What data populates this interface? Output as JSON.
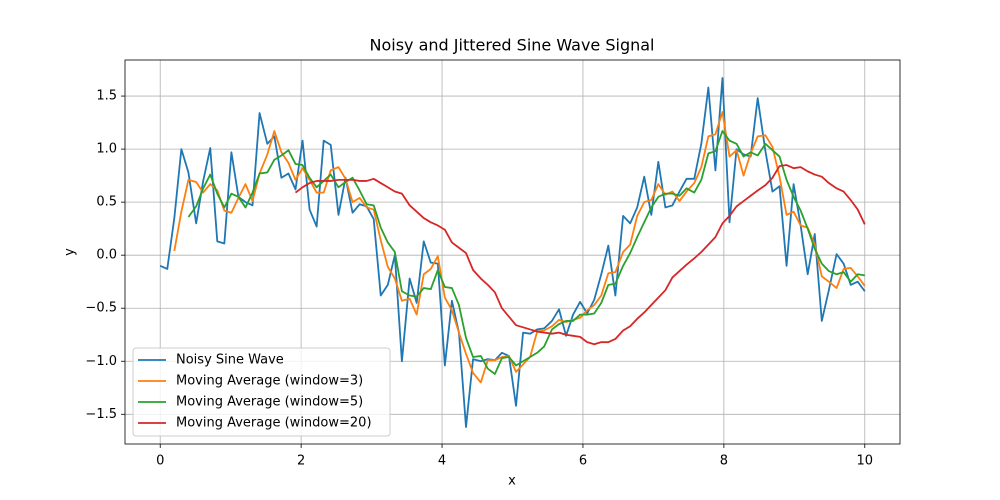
{
  "chart_data": {
    "type": "line",
    "title": "Noisy and Jittered Sine Wave Signal",
    "x_label": "x",
    "y_label": "y",
    "x": [
      0,
      0.1,
      0.2,
      0.3,
      0.4,
      0.51,
      0.61,
      0.71,
      0.81,
      0.91,
      1.01,
      1.11,
      1.21,
      1.31,
      1.41,
      1.52,
      1.62,
      1.72,
      1.82,
      1.92,
      2.02,
      2.12,
      2.22,
      2.32,
      2.42,
      2.53,
      2.63,
      2.73,
      2.83,
      2.93,
      3.03,
      3.13,
      3.23,
      3.33,
      3.43,
      3.54,
      3.64,
      3.74,
      3.84,
      3.94,
      4.04,
      4.14,
      4.24,
      4.34,
      4.44,
      4.55,
      4.65,
      4.75,
      4.85,
      4.95,
      5.05,
      5.15,
      5.25,
      5.35,
      5.45,
      5.56,
      5.66,
      5.76,
      5.86,
      5.96,
      6.06,
      6.16,
      6.26,
      6.36,
      6.46,
      6.57,
      6.67,
      6.77,
      6.87,
      6.97,
      7.07,
      7.17,
      7.27,
      7.37,
      7.47,
      7.58,
      7.68,
      7.78,
      7.88,
      7.98,
      8.08,
      8.18,
      8.28,
      8.38,
      8.48,
      8.59,
      8.69,
      8.79,
      8.89,
      8.99,
      9.09,
      9.19,
      9.29,
      9.39,
      9.49,
      9.6,
      9.7,
      9.8,
      9.9,
      10
    ],
    "series": [
      {
        "name": "Noisy Sine Wave",
        "color": "#1f77b4",
        "values": [
          -0.1,
          -0.13,
          0.35,
          1.0,
          0.78,
          0.3,
          0.7,
          1.01,
          0.13,
          0.11,
          0.97,
          0.55,
          0.5,
          0.47,
          1.34,
          1.05,
          1.12,
          0.73,
          0.77,
          0.62,
          1.08,
          0.43,
          0.27,
          1.08,
          1.04,
          0.38,
          0.73,
          0.4,
          0.48,
          0.46,
          0.34,
          -0.38,
          -0.28,
          0.0,
          -1.0,
          -0.22,
          -0.45,
          0.13,
          -0.07,
          -0.08,
          -1.04,
          -0.43,
          -0.73,
          -1.62,
          -0.98,
          -1.0,
          -0.98,
          -0.99,
          -0.92,
          -0.95,
          -1.42,
          -0.73,
          -0.74,
          -0.7,
          -0.69,
          -0.62,
          -0.51,
          -0.76,
          -0.56,
          -0.44,
          -0.55,
          -0.42,
          -0.18,
          0.09,
          -0.38,
          0.37,
          0.3,
          0.45,
          0.74,
          0.38,
          0.88,
          0.45,
          0.47,
          0.6,
          0.72,
          0.72,
          1.05,
          1.58,
          0.8,
          1.67,
          0.31,
          1.0,
          0.95,
          0.93,
          1.48,
          0.98,
          0.6,
          0.65,
          -0.1,
          0.67,
          0.28,
          -0.18,
          0.2,
          -0.62,
          -0.33,
          0.01,
          -0.08,
          -0.28,
          -0.25,
          -0.34
        ]
      },
      {
        "name": "Moving Average (window=3)",
        "color": "#ff7f0e",
        "values": [
          null,
          null,
          0.04,
          0.41,
          0.71,
          0.69,
          0.59,
          0.67,
          0.61,
          0.42,
          0.4,
          0.54,
          0.67,
          0.51,
          0.77,
          0.95,
          1.17,
          0.97,
          0.87,
          0.71,
          0.82,
          0.71,
          0.59,
          0.59,
          0.8,
          0.83,
          0.72,
          0.5,
          0.54,
          0.45,
          0.43,
          0.14,
          -0.11,
          -0.22,
          -0.43,
          -0.41,
          -0.56,
          -0.18,
          -0.13,
          -0.01,
          -0.4,
          -0.52,
          -0.73,
          -0.93,
          -1.11,
          -1.2,
          -0.99,
          -0.99,
          -0.96,
          -0.95,
          -1.1,
          -1.03,
          -0.96,
          -0.72,
          -0.71,
          -0.67,
          -0.61,
          -0.63,
          -0.61,
          -0.59,
          -0.52,
          -0.47,
          -0.38,
          -0.17,
          -0.16,
          0.03,
          0.1,
          0.37,
          0.5,
          0.52,
          0.67,
          0.57,
          0.6,
          0.51,
          0.6,
          0.68,
          0.83,
          1.12,
          1.14,
          1.35,
          0.93,
          0.99,
          0.75,
          0.96,
          1.12,
          1.13,
          1.02,
          0.74,
          0.38,
          0.41,
          0.28,
          0.26,
          0.1,
          -0.2,
          -0.25,
          -0.31,
          -0.13,
          -0.12,
          -0.2,
          -0.29
        ]
      },
      {
        "name": "Moving Average (window=5)",
        "color": "#2ca02c",
        "values": [
          null,
          null,
          null,
          null,
          0.36,
          0.46,
          0.63,
          0.76,
          0.58,
          0.45,
          0.58,
          0.55,
          0.45,
          0.59,
          0.77,
          0.78,
          0.9,
          0.94,
          0.99,
          0.86,
          0.85,
          0.73,
          0.64,
          0.7,
          0.76,
          0.64,
          0.69,
          0.73,
          0.61,
          0.48,
          0.47,
          0.26,
          0.12,
          0.03,
          -0.34,
          -0.38,
          -0.39,
          -0.31,
          -0.32,
          -0.14,
          -0.3,
          -0.31,
          -0.47,
          -0.78,
          -0.96,
          -0.95,
          -1.07,
          -1.12,
          -0.97,
          -0.96,
          -1.04,
          -1.0,
          -0.96,
          -0.92,
          -0.86,
          -0.7,
          -0.65,
          -0.62,
          -0.62,
          -0.56,
          -0.56,
          -0.55,
          -0.45,
          -0.28,
          -0.27,
          -0.1,
          0.02,
          0.17,
          0.31,
          0.45,
          0.55,
          0.58,
          0.58,
          0.56,
          0.63,
          0.59,
          0.71,
          0.96,
          0.98,
          1.17,
          1.08,
          1.05,
          0.93,
          0.97,
          0.94,
          1.05,
          0.99,
          0.93,
          0.71,
          0.55,
          0.42,
          0.25,
          0.06,
          -0.08,
          -0.15,
          -0.18,
          -0.16,
          -0.25,
          -0.18,
          -0.19
        ]
      },
      {
        "name": "Moving Average (window=20)",
        "color": "#d62728",
        "values": [
          null,
          null,
          null,
          null,
          null,
          null,
          null,
          null,
          null,
          null,
          null,
          null,
          null,
          null,
          null,
          null,
          null,
          null,
          null,
          0.59,
          0.64,
          0.68,
          0.7,
          0.7,
          0.7,
          0.71,
          0.71,
          0.71,
          0.7,
          0.7,
          0.72,
          0.68,
          0.64,
          0.6,
          0.58,
          0.47,
          0.41,
          0.35,
          0.31,
          0.28,
          0.24,
          0.12,
          0.07,
          0.02,
          -0.14,
          -0.22,
          -0.28,
          -0.35,
          -0.5,
          -0.58,
          -0.66,
          -0.68,
          -0.7,
          -0.72,
          -0.73,
          -0.74,
          -0.73,
          -0.75,
          -0.76,
          -0.77,
          -0.82,
          -0.84,
          -0.82,
          -0.82,
          -0.79,
          -0.71,
          -0.67,
          -0.6,
          -0.54,
          -0.47,
          -0.4,
          -0.33,
          -0.21,
          -0.15,
          -0.09,
          -0.03,
          0.03,
          0.1,
          0.17,
          0.3,
          0.37,
          0.46,
          0.51,
          0.56,
          0.61,
          0.66,
          0.73,
          0.84,
          0.85,
          0.82,
          0.83,
          0.79,
          0.76,
          0.74,
          0.68,
          0.63,
          0.6,
          0.52,
          0.43,
          0.29
        ]
      }
    ],
    "xlim": [
      -0.5,
      10.5
    ],
    "ylim": [
      -1.78,
      1.84
    ],
    "xticks": [
      0,
      2,
      4,
      6,
      8,
      10
    ],
    "yticks": [
      {
        "value": -1.5,
        "label": "−1.5"
      },
      {
        "value": -1.0,
        "label": "−1.0"
      },
      {
        "value": -0.5,
        "label": "−0.5"
      },
      {
        "value": 0.0,
        "label": "0.0"
      },
      0.5,
      {
        "value": 1.0,
        "label": "1.0"
      },
      1.5
    ],
    "grid": true,
    "legend_position": "lower-left"
  }
}
